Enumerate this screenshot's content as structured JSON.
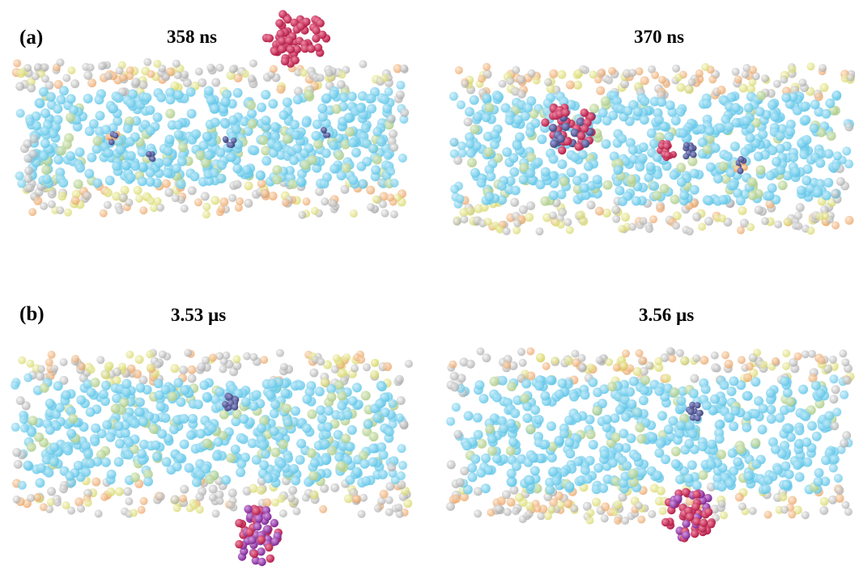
{
  "figure": {
    "panels": [
      {
        "letter": "(a)",
        "frames": [
          {
            "time": "358 ns",
            "clusters": [
              {
                "kind": "red"
              },
              {
                "kind": "dark-blue"
              },
              {
                "kind": "dark-blue"
              },
              {
                "kind": "dark-blue"
              },
              {
                "kind": "dark-blue"
              }
            ]
          },
          {
            "time": "370 ns",
            "clusters": [
              {
                "kind": "red"
              },
              {
                "kind": "red"
              },
              {
                "kind": "dark-blue"
              },
              {
                "kind": "dark-blue"
              }
            ]
          }
        ]
      },
      {
        "letter": "(b)",
        "frames": [
          {
            "time": "3.53 µs",
            "clusters": [
              {
                "kind": "dark-blue"
              },
              {
                "kind": "red-purple"
              }
            ]
          },
          {
            "time": "3.56 µs",
            "clusters": [
              {
                "kind": "dark-blue"
              },
              {
                "kind": "red-purple"
              }
            ]
          }
        ]
      }
    ]
  },
  "colors": {
    "lipid_tail": "#5bc3e6",
    "lipid_tail_alt": "#b2cf8e",
    "headgroup_gray": "#a8a8a8",
    "headgroup_orange": "#eeaa70",
    "headgroup_yellow": "#dede7a",
    "cluster_red": "#cc1f4d",
    "cluster_purple": "#8a2a9e",
    "cluster_dark_blue": "#4a4f8a",
    "background": "#ffffff",
    "text": "#000000"
  }
}
